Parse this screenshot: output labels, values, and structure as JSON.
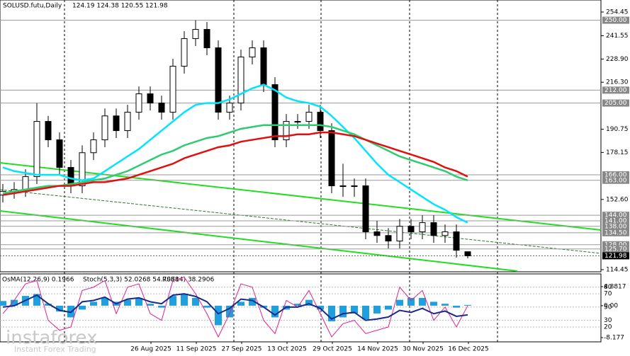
{
  "chart_data": {
    "type": "candlestick",
    "symbol": "SOLUSD.futu,Daily",
    "ohlc_text": "124.19 124.38 120.55 121.98",
    "open": [
      155,
      157,
      158,
      165,
      195,
      185,
      170,
      160,
      178,
      185,
      198,
      190,
      200,
      210,
      205,
      200,
      225,
      240,
      245,
      235,
      200,
      205,
      230,
      235,
      215,
      185,
      195,
      195,
      200,
      190,
      160,
      160,
      160,
      135,
      133,
      130,
      138,
      135,
      140,
      133,
      135,
      124.19
    ],
    "high": [
      161,
      162,
      169,
      205,
      198,
      189,
      174,
      182,
      189,
      202,
      202,
      204,
      214,
      214,
      209,
      229,
      244,
      250,
      249,
      239,
      209,
      234,
      239,
      239,
      219,
      199,
      199,
      204,
      204,
      194,
      172,
      164,
      164,
      141,
      137,
      142,
      142,
      144,
      144,
      139,
      139,
      124.38
    ],
    "low": [
      151,
      153,
      154,
      161,
      181,
      166,
      156,
      156,
      174,
      181,
      186,
      186,
      196,
      201,
      196,
      196,
      221,
      236,
      231,
      196,
      196,
      201,
      226,
      211,
      181,
      181,
      191,
      191,
      186,
      156,
      154,
      154,
      131,
      129,
      126,
      126,
      131,
      131,
      129,
      129,
      121,
      120.55
    ],
    "close": [
      157,
      158,
      165,
      195,
      185,
      170,
      160,
      178,
      185,
      198,
      190,
      200,
      210,
      205,
      200,
      225,
      240,
      245,
      235,
      200,
      205,
      230,
      235,
      215,
      185,
      195,
      195,
      200,
      190,
      160,
      160,
      160,
      135,
      133,
      130,
      138,
      135,
      140,
      133,
      135,
      125,
      121.98
    ],
    "ma_lines": [
      {
        "color": "#00e5ff",
        "values": [
          170,
          168,
          167,
          166,
          166,
          166,
          164,
          163,
          164,
          168,
          172,
          176,
          180,
          185,
          190,
          195,
          200,
          204,
          205,
          205,
          207,
          210,
          213,
          215,
          212,
          208,
          206,
          205,
          203,
          198,
          192,
          186,
          179,
          172,
          166,
          162,
          158,
          154,
          150,
          147,
          143,
          140
        ]
      },
      {
        "color": "#2ecc71",
        "values": [
          156,
          157,
          158,
          159,
          160,
          160,
          161,
          162,
          163,
          164,
          166,
          168,
          171,
          174,
          177,
          179,
          182,
          184,
          186,
          187,
          189,
          191,
          192,
          193,
          193,
          193,
          193,
          193,
          193,
          192,
          190,
          188,
          185,
          182,
          179,
          176,
          174,
          172,
          170,
          168,
          165,
          163
        ]
      },
      {
        "color": "#e01010",
        "values": [
          155,
          156,
          157,
          158,
          159,
          160,
          160,
          161,
          162,
          162,
          163,
          164,
          166,
          168,
          170,
          172,
          175,
          177,
          179,
          181,
          182,
          184,
          185,
          186,
          187,
          187,
          188,
          188,
          189,
          189,
          188,
          187,
          185,
          183,
          181,
          179,
          177,
          175,
          173,
          170,
          168,
          165
        ]
      }
    ],
    "ylim": [
      114.45,
      254.45
    ],
    "yticks": [
      254.45,
      241.55,
      {
        "value": 228.9,
        "label": "228.90"
      },
      {
        "value": 216.3,
        "label": "216.30"
      },
      190.75,
      178.15,
      {
        "value": 152.6,
        "label": "152.60"
      },
      114.45
    ],
    "levels": [
      {
        "value": 250,
        "label": "250.00"
      },
      {
        "value": 212,
        "label": "212.00"
      },
      {
        "value": 205,
        "label": "205.00"
      },
      {
        "value": 166,
        "label": "166.00"
      },
      {
        "value": 163,
        "label": "163.00"
      },
      {
        "value": 144,
        "label": "144.00"
      },
      {
        "value": 141,
        "label": "141.00"
      },
      {
        "value": 138,
        "label": "138.00"
      },
      {
        "value": 134.5,
        "label": "134.50"
      },
      {
        "value": 128,
        "label": "128.00"
      },
      {
        "value": 125.7,
        "label": "125.70"
      }
    ],
    "last_price": 121.98,
    "dates": [
      "26 Aug 2025",
      "11 Sep 2025",
      "27 Sep 2025",
      "13 Oct 2025",
      "29 Oct 2025",
      "14 Nov 2025",
      "30 Nov 2025",
      "16 Dec 2025"
    ],
    "osc_texts": [
      "OsMA(12,26,9) 0.1966",
      "Stoch(5,3,3) 52.0268 54.7088",
      "RSI(14) 38.2906"
    ],
    "osc_ylim": [
      0,
      100
    ],
    "osc_yticks": [
      80,
      70,
      50,
      30,
      20
    ],
    "osma_ylim": [
      -8.177,
      4.8817
    ],
    "osma_yticks": [
      4.8817,
      {
        "value": 0,
        "label": "0.00"
      },
      -8.177
    ],
    "osma": [
      1.2,
      1.5,
      2.5,
      3,
      0.5,
      -1.5,
      -3,
      -1,
      1,
      2,
      1,
      1.5,
      2,
      0.5,
      -0.5,
      2.5,
      3,
      2,
      -0.5,
      -5,
      -3,
      1,
      2,
      -0.5,
      -3,
      -1,
      0.5,
      1.5,
      -1,
      -4,
      -3,
      -2,
      -3.5,
      -2,
      -1,
      1.5,
      2,
      2,
      1,
      0.5,
      -0.5,
      0.1966
    ],
    "stoch": [
      40,
      60,
      85,
      90,
      30,
      15,
      20,
      75,
      80,
      90,
      40,
      80,
      85,
      40,
      30,
      90,
      95,
      70,
      40,
      5,
      40,
      85,
      80,
      30,
      10,
      60,
      50,
      75,
      40,
      5,
      25,
      30,
      10,
      15,
      20,
      80,
      60,
      75,
      30,
      50,
      20,
      52.0268
    ],
    "rsi": [
      50,
      52,
      60,
      68,
      55,
      45,
      42,
      58,
      60,
      65,
      55,
      62,
      64,
      58,
      55,
      68,
      70,
      66,
      58,
      40,
      48,
      62,
      60,
      50,
      38,
      50,
      50,
      55,
      48,
      32,
      40,
      42,
      30,
      32,
      35,
      45,
      42,
      48,
      40,
      44,
      36,
      38.2906
    ],
    "watermark": "instaforex",
    "watermark_sub": "Instant Forex Trading"
  }
}
